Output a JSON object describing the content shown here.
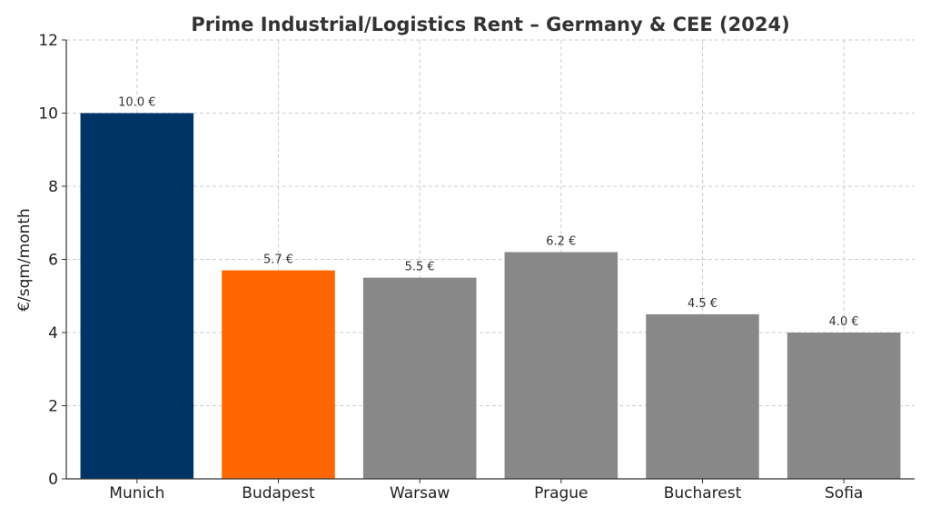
{
  "chart_data": {
    "type": "bar",
    "title": "Prime Industrial/Logistics Rent – Germany & CEE (2024)",
    "xlabel": "",
    "ylabel": "€/sqm/month",
    "ylim": [
      0,
      12
    ],
    "yticks": [
      0,
      2,
      4,
      6,
      8,
      10,
      12
    ],
    "categories": [
      "Munich",
      "Budapest",
      "Warsaw",
      "Prague",
      "Bucharest",
      "Sofia"
    ],
    "values": [
      10.0,
      5.7,
      5.5,
      6.2,
      4.5,
      4.0
    ],
    "data_labels": [
      "10.0 €",
      "5.7 €",
      "5.5 €",
      "6.2 €",
      "4.5 €",
      "4.0 €"
    ],
    "bar_colors": [
      "#003366",
      "#ff6600",
      "#888888",
      "#888888",
      "#888888",
      "#888888"
    ],
    "grid": true,
    "legend": false
  }
}
